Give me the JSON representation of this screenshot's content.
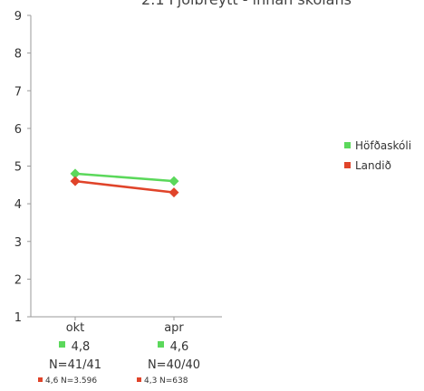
{
  "chart_data": {
    "type": "line",
    "title": "2.1 Fjölbreytt - innan skólans",
    "xlabel": "",
    "ylabel": "",
    "categories": [
      "okt",
      "apr"
    ],
    "ylim": [
      1,
      9
    ],
    "yticks": [
      1,
      2,
      3,
      4,
      5,
      6,
      7,
      8,
      9
    ],
    "grid": false,
    "legend_position": "right",
    "series": [
      {
        "name": "Höfðaskóli",
        "color": "#5bd85b",
        "marker": "diamond",
        "values": [
          4.8,
          4.6
        ],
        "value_labels": [
          "4,8",
          "4,6"
        ],
        "n_labels": [
          "N=41/41",
          "N=40/40"
        ]
      },
      {
        "name": "Landið",
        "color": "#e0442a",
        "marker": "diamond",
        "values": [
          4.6,
          4.3
        ],
        "value_labels": [
          "4,6",
          "4,3"
        ],
        "n_labels": [
          "N=3.596",
          "N=638"
        ]
      }
    ]
  }
}
